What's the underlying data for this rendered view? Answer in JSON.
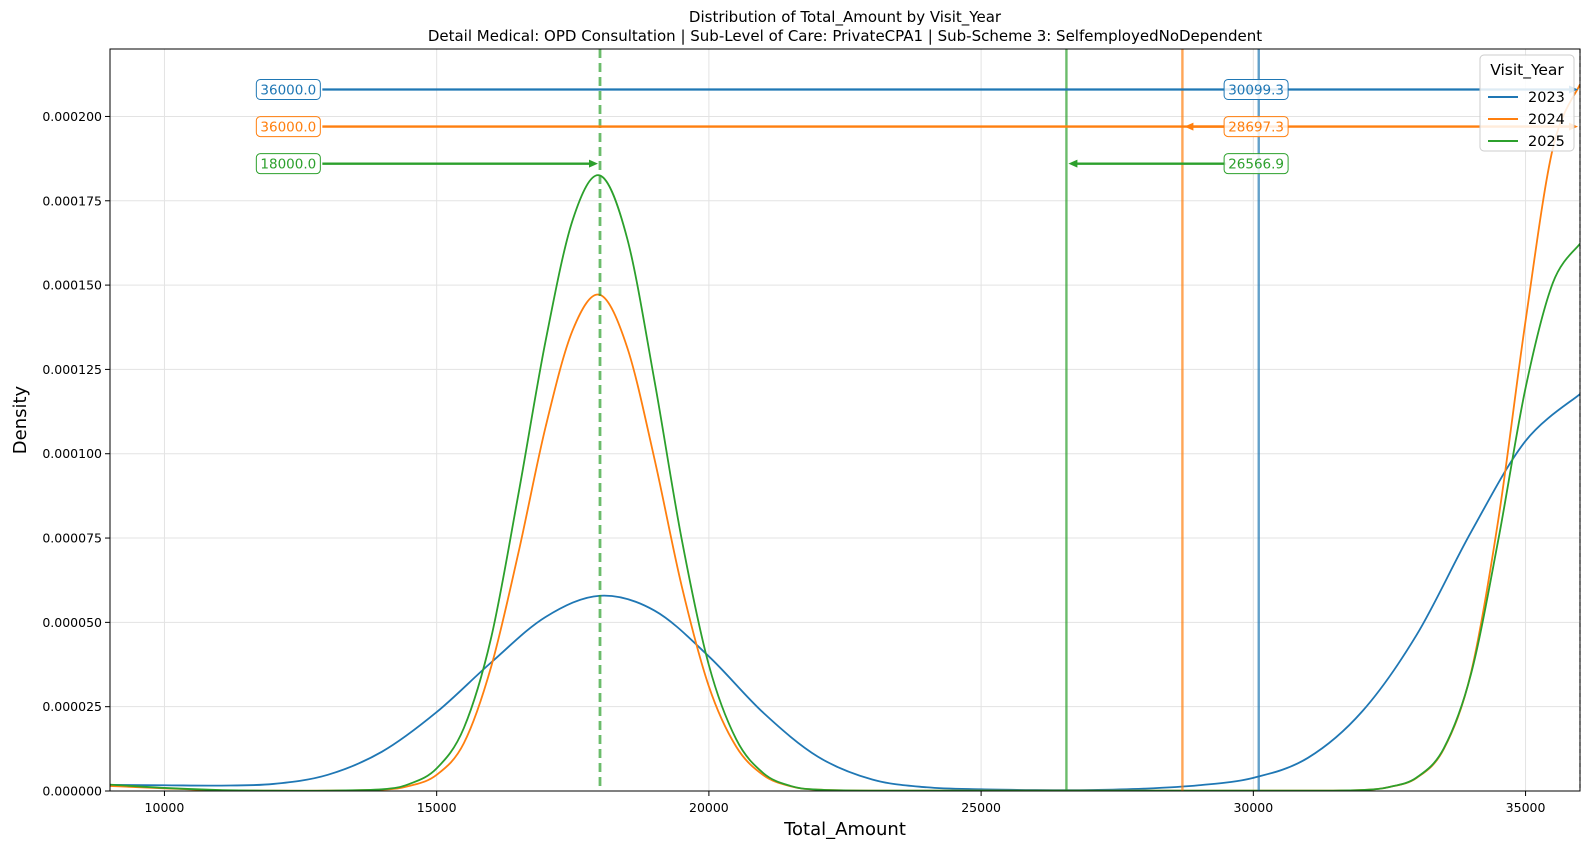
{
  "chart_data": {
    "type": "line",
    "title": "Distribution of Total_Amount by Visit_Year",
    "subtitle": "Detail Medical: OPD Consultation | Sub-Level of Care: PrivateCPA1 | Sub-Scheme 3: SelfemployedNoDependent",
    "xlabel": "Total_Amount",
    "ylabel": "Density",
    "xlim": [
      9000,
      36000
    ],
    "ylim": [
      0,
      0.00022
    ],
    "x_ticks": [
      10000,
      15000,
      20000,
      25000,
      30000,
      35000
    ],
    "x_tick_labels": [
      "10000",
      "15000",
      "20000",
      "25000",
      "30000",
      "35000"
    ],
    "y_ticks": [
      0,
      2.5e-05,
      5e-05,
      7.5e-05,
      0.0001,
      0.000125,
      0.00015,
      0.000175,
      0.0002
    ],
    "y_tick_labels": [
      "0.000000",
      "0.000025",
      "0.000050",
      "0.000075",
      "0.000100",
      "0.000125",
      "0.000150",
      "0.000175",
      "0.000200"
    ],
    "grid": true,
    "legend": {
      "title": "Visit_Year",
      "placement": "top-right"
    },
    "series": [
      {
        "name": "2023",
        "color": "#1f77b4",
        "x": [
          9000,
          10000,
          11000,
          12000,
          13000,
          14000,
          15000,
          16000,
          17000,
          18000,
          19000,
          20000,
          21000,
          22000,
          23000,
          24000,
          25000,
          26000,
          27000,
          28000,
          29000,
          30000,
          31000,
          32000,
          33000,
          34000,
          35000,
          36000
        ],
        "y": [
          1.8e-06,
          1.7e-06,
          1.6e-06,
          2.1e-06,
          4.8e-06,
          1.17e-05,
          2.34e-05,
          3.81e-05,
          5.16e-05,
          5.79e-05,
          5.35e-05,
          3.99e-05,
          2.32e-05,
          1.02e-05,
          3.4e-06,
          1.1e-06,
          5e-07,
          3e-07,
          3e-07,
          7e-07,
          1.7e-06,
          3.9e-06,
          9.8e-06,
          2.36e-05,
          4.63e-05,
          7.68e-05,
          0.0001038,
          0.0001177
        ]
      },
      {
        "name": "2024",
        "color": "#ff7f0e",
        "x": [
          9000,
          10000,
          11000,
          12000,
          13000,
          14000,
          14500,
          15000,
          15500,
          16000,
          16500,
          17000,
          17500,
          18000,
          18500,
          19000,
          19500,
          20000,
          20500,
          21000,
          21500,
          22000,
          23000,
          25000,
          28000,
          31000,
          32000,
          32500,
          33000,
          33500,
          34000,
          34500,
          35000,
          35500,
          36000
        ],
        "y": [
          1.5e-06,
          8e-07,
          2e-07,
          1e-07,
          1e-07,
          4e-07,
          1.5e-06,
          4.8e-06,
          1.42e-05,
          3.68e-05,
          7.05e-05,
          0.0001079,
          0.0001367,
          0.0001471,
          0.0001315,
          9.85e-05,
          6.08e-05,
          3.1e-05,
          1.32e-05,
          4.7e-06,
          1.4e-06,
          4e-07,
          1e-07,
          1e-07,
          1e-07,
          1e-07,
          3e-07,
          1.2e-06,
          3.9e-06,
          1.25e-05,
          3.52e-05,
          8.05e-05,
          0.0001394,
          0.0001905,
          0.0002095
        ]
      },
      {
        "name": "2025",
        "color": "#2ca02c",
        "x": [
          9000,
          10000,
          11000,
          12000,
          13000,
          14000,
          14500,
          15000,
          15500,
          16000,
          16500,
          17000,
          17500,
          18000,
          18500,
          19000,
          19500,
          20000,
          20500,
          21000,
          21500,
          22000,
          23000,
          25000,
          28000,
          31000,
          32000,
          32500,
          33000,
          33500,
          34000,
          34500,
          35000,
          35500,
          36000
        ],
        "y": [
          1.9e-06,
          9e-07,
          3e-07,
          1e-07,
          1e-07,
          5e-07,
          2.1e-06,
          6.7e-06,
          1.87e-05,
          4.54e-05,
          8.79e-05,
          0.0001334,
          0.0001694,
          0.0001825,
          0.0001638,
          0.0001217,
          7.47e-05,
          3.73e-05,
          1.54e-05,
          5.3e-06,
          1.5e-06,
          4e-07,
          1e-07,
          1e-07,
          1e-07,
          1e-07,
          3e-07,
          1.2e-06,
          4e-06,
          1.27e-05,
          3.48e-05,
          7.45e-05,
          0.0001195,
          0.0001506,
          0.0001623
        ]
      }
    ],
    "vertical_lines": [
      {
        "series": "2023",
        "x": 30099.3,
        "style": "solid"
      },
      {
        "series": "2024",
        "x": 28697.3,
        "style": "solid"
      },
      {
        "series": "2025",
        "x": 26566.9,
        "style": "solid"
      },
      {
        "series": "2025",
        "x": 18000,
        "style": "dashed"
      },
      {
        "series": "2024",
        "x": 36000,
        "style": "dashed"
      }
    ],
    "annotations": [
      {
        "series": "2023",
        "label": "36000.0",
        "y": 0.000208,
        "from_x": 12900,
        "to_x": 36000,
        "side": "left"
      },
      {
        "series": "2024",
        "label": "36000.0",
        "y": 0.000197,
        "from_x": 12900,
        "to_x": 36000,
        "side": "left"
      },
      {
        "series": "2025",
        "label": "18000.0",
        "y": 0.000186,
        "from_x": 12900,
        "to_x": 18000,
        "side": "left"
      },
      {
        "series": "2023",
        "label": "30099.3",
        "y": 0.000208,
        "from_x": 29500,
        "to_x": 30099.3,
        "side": "right"
      },
      {
        "series": "2024",
        "label": "28697.3",
        "y": 0.000197,
        "from_x": 29500,
        "to_x": 28697.3,
        "side": "right"
      },
      {
        "series": "2025",
        "label": "26566.9",
        "y": 0.000186,
        "from_x": 29500,
        "to_x": 26566.9,
        "side": "right"
      }
    ]
  }
}
